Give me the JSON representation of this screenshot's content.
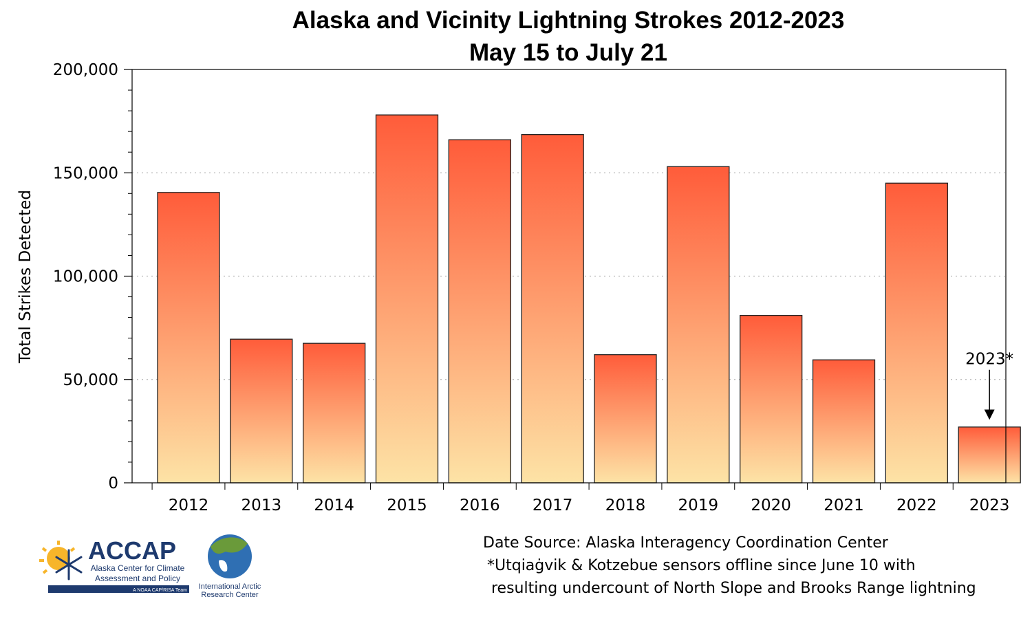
{
  "chart_data": {
    "type": "bar",
    "title": "Alaska and Vicinity Lightning Strokes 2012-2023",
    "subtitle": "May 15 to July 21",
    "xlabel": "",
    "ylabel": "Total Strikes Detected",
    "categories": [
      "2012",
      "2013",
      "2014",
      "2015",
      "2016",
      "2017",
      "2018",
      "2019",
      "2020",
      "2021",
      "2022",
      "2023"
    ],
    "values": [
      140500,
      69500,
      67500,
      178000,
      166000,
      168500,
      62000,
      153000,
      81000,
      59500,
      145000,
      27000
    ],
    "ylim": [
      0,
      200000
    ],
    "yticks": [
      0,
      50000,
      100000,
      150000,
      200000
    ],
    "ytick_labels": [
      "0",
      "50,000",
      "100,000",
      "150,000",
      "200,000"
    ],
    "grid": "horizontal dotted",
    "bar_gradient": [
      "#ff5c3a",
      "#fde3a6"
    ],
    "annotation": {
      "text": "2023*",
      "target": "2023"
    }
  },
  "notes": {
    "source": "Date Source: Alaska Interagency Coordination Center",
    "footnote_line1": "*Utqiaġvik & Kotzebue sensors offline since June 10 with",
    "footnote_line2": "resulting undercount of North Slope and Brooks Range lightning"
  },
  "logos": {
    "accap_name": "ACCAP",
    "accap_line1": "Alaska Center for Climate",
    "accap_line2": "Assessment and Policy",
    "accap_tagline": "A NOAA CAP/RISA Team",
    "iarc_line1": "International Arctic",
    "iarc_line2": "Research Center"
  }
}
